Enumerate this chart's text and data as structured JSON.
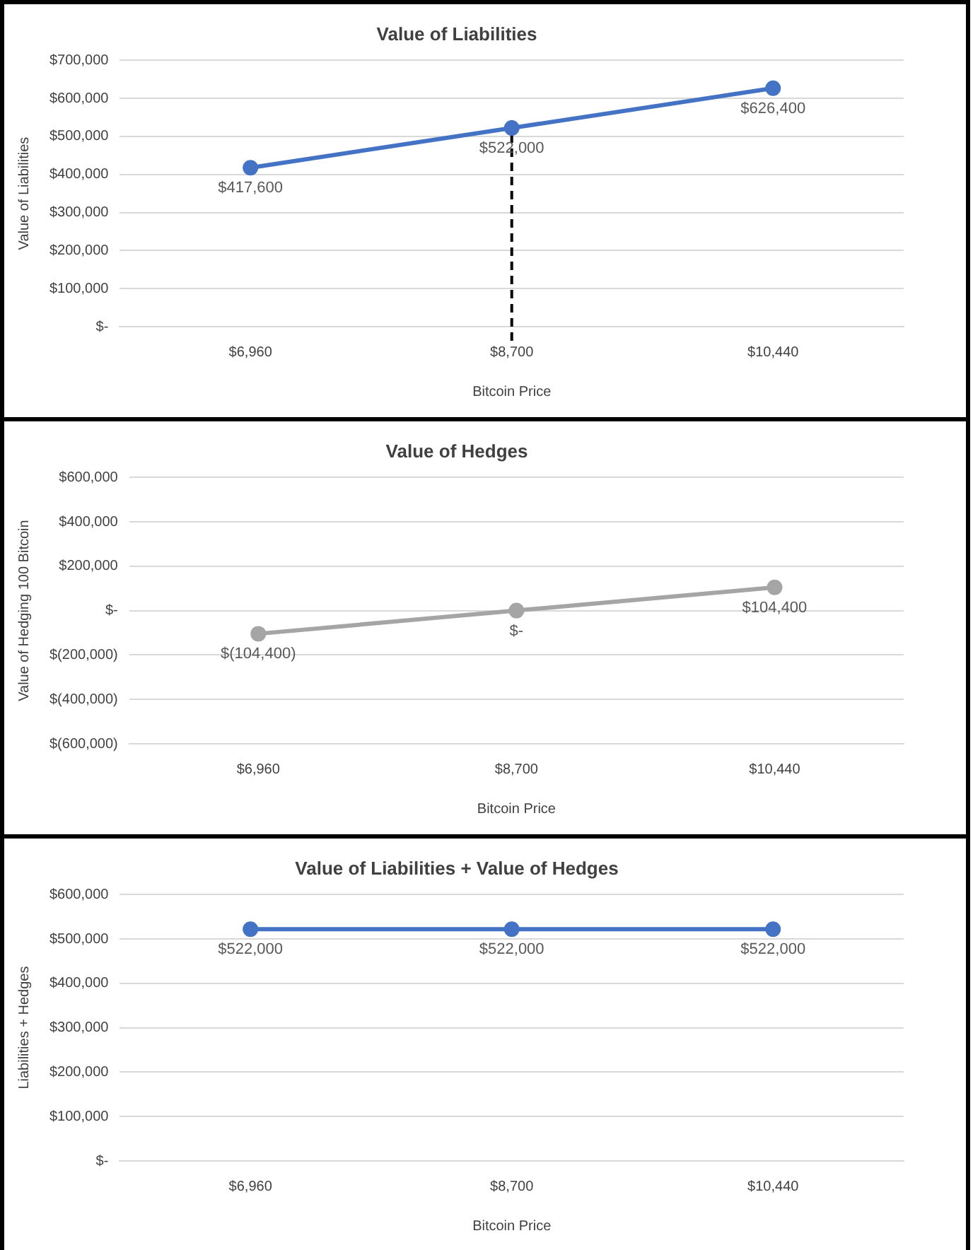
{
  "chart_data": [
    {
      "type": "line",
      "title": "Value of Liabilities",
      "xlabel": "Bitcoin Price",
      "ylabel": "Value of Liabilities",
      "categories": [
        "$6,960",
        "$8,700",
        "$10,440"
      ],
      "series": [
        {
          "color": "#4472c4",
          "values": [
            417600,
            522000,
            626400
          ],
          "value_labels": [
            "$417,600",
            "$522,000",
            "$626,400"
          ]
        }
      ],
      "ylim": [
        0,
        700000
      ],
      "yticks": [
        {
          "value": 0,
          "label": "$-"
        },
        {
          "value": 100000,
          "label": "$100,000"
        },
        {
          "value": 200000,
          "label": "$200,000"
        },
        {
          "value": 300000,
          "label": "$300,000"
        },
        {
          "value": 400000,
          "label": "$400,000"
        },
        {
          "value": 500000,
          "label": "$500,000"
        },
        {
          "value": 600000,
          "label": "$600,000"
        },
        {
          "value": 700000,
          "label": "$700,000"
        }
      ],
      "ref_lines": [
        {
          "axis": "x",
          "value": "$8,700",
          "color": "#000000",
          "line_style": "dashed"
        }
      ],
      "grid": "y",
      "legend": false,
      "marker": "circle",
      "line_style": "solid"
    },
    {
      "type": "line",
      "title": "Value of Hedges",
      "xlabel": "Bitcoin Price",
      "ylabel": "Value of Hedging 100 Bitcoin",
      "categories": [
        "$6,960",
        "$8,700",
        "$10,440"
      ],
      "series": [
        {
          "color": "#a5a5a5",
          "values": [
            -104400,
            0,
            104400
          ],
          "value_labels": [
            "$(104,400)",
            "$-",
            "$104,400"
          ]
        }
      ],
      "ylim": [
        -600000,
        600000
      ],
      "yticks": [
        {
          "value": -600000,
          "label": "$(600,000)"
        },
        {
          "value": -400000,
          "label": "$(400,000)"
        },
        {
          "value": -200000,
          "label": "$(200,000)"
        },
        {
          "value": 0,
          "label": "$-"
        },
        {
          "value": 200000,
          "label": "$200,000"
        },
        {
          "value": 400000,
          "label": "$400,000"
        },
        {
          "value": 600000,
          "label": "$600,000"
        }
      ],
      "grid": "y",
      "legend": false,
      "marker": "circle",
      "line_style": "solid"
    },
    {
      "type": "line",
      "title": "Value of Liabilities + Value of Hedges",
      "xlabel": "Bitcoin Price",
      "ylabel": "Liabilities + Hedges",
      "categories": [
        "$6,960",
        "$8,700",
        "$10,440"
      ],
      "series": [
        {
          "color": "#4472c4",
          "values": [
            522000,
            522000,
            522000
          ],
          "value_labels": [
            "$522,000",
            "$522,000",
            "$522,000"
          ]
        }
      ],
      "ylim": [
        0,
        600000
      ],
      "yticks": [
        {
          "value": 0,
          "label": "$-"
        },
        {
          "value": 100000,
          "label": "$100,000"
        },
        {
          "value": 200000,
          "label": "$200,000"
        },
        {
          "value": 300000,
          "label": "$300,000"
        },
        {
          "value": 400000,
          "label": "$400,000"
        },
        {
          "value": 500000,
          "label": "$500,000"
        },
        {
          "value": 600000,
          "label": "$600,000"
        }
      ],
      "grid": "y",
      "legend": false,
      "marker": "circle",
      "line_style": "solid"
    }
  ]
}
